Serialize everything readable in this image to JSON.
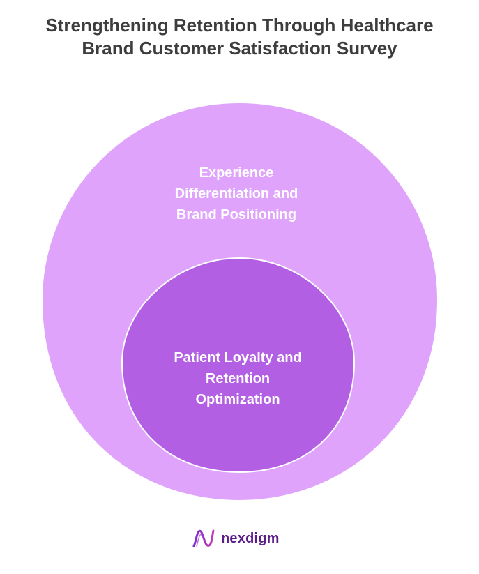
{
  "title": {
    "line1": "Strengthening Retention Through Healthcare",
    "line2": "Brand Customer Satisfaction Survey"
  },
  "diagram": {
    "outer": {
      "line1": "Experience",
      "line2": "Differentiation and",
      "line3": "Brand Positioning",
      "color": "#e0a3fb"
    },
    "inner": {
      "line1": "Patient Loyalty and",
      "line2": "Retention",
      "line3": "Optimization",
      "color": "#b35fe3"
    }
  },
  "logo": {
    "text": "nexdigm",
    "icon": "nexdigm-logo-icon"
  }
}
